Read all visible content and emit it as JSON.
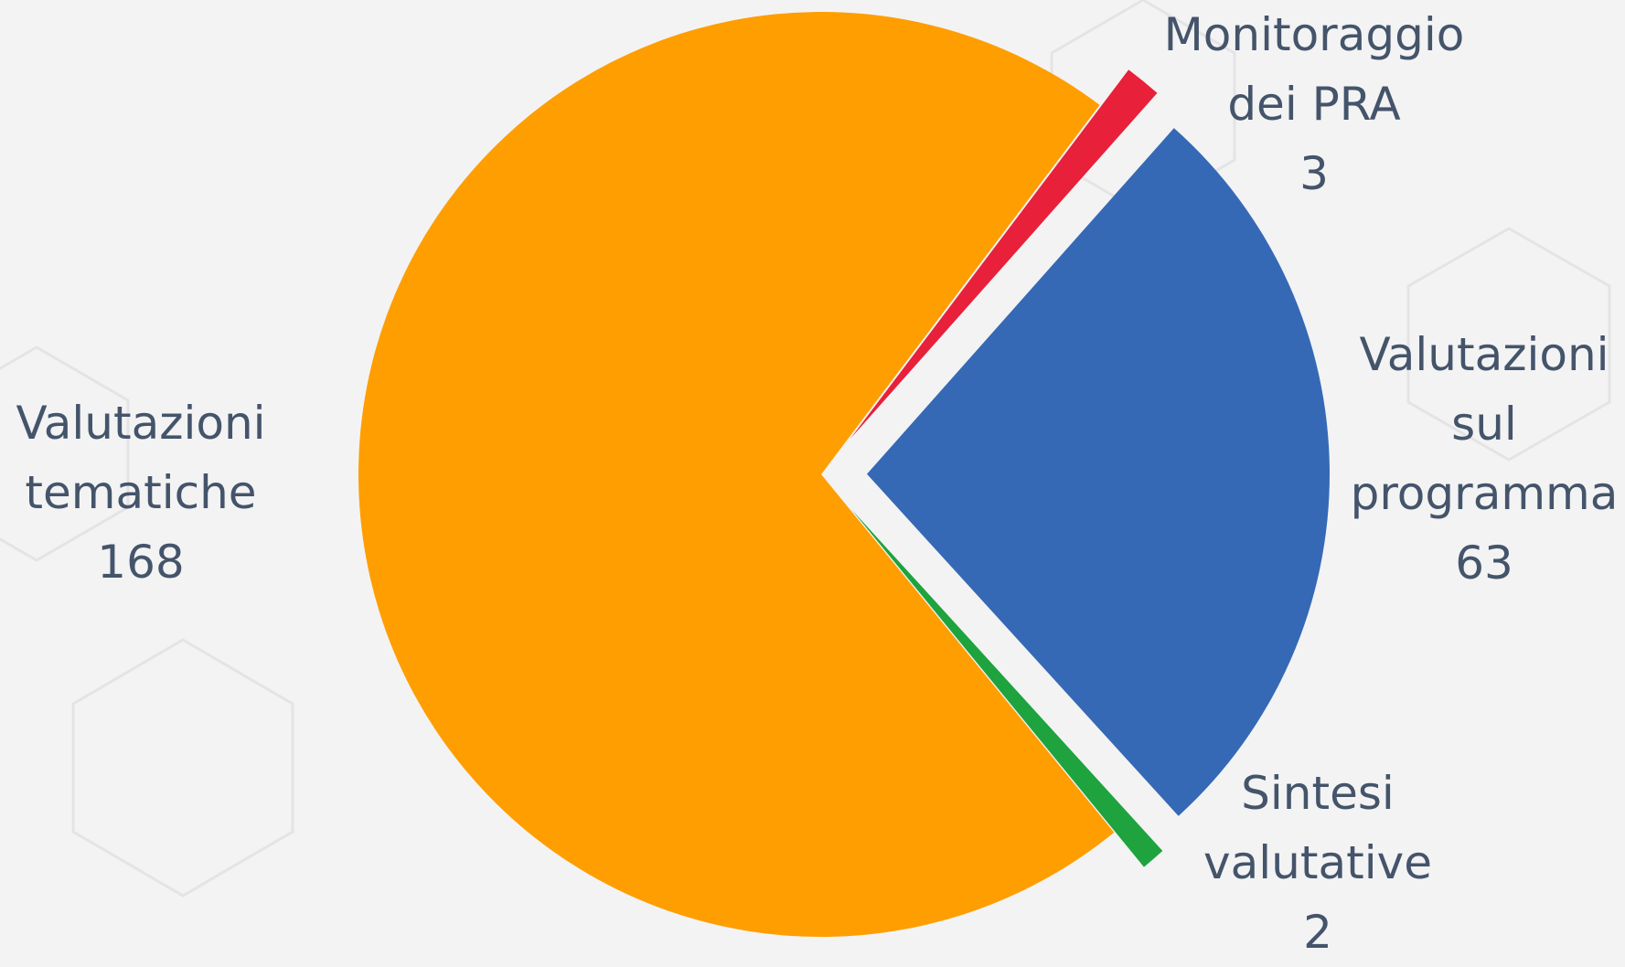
{
  "chart_data": {
    "type": "pie",
    "categories": [
      "Monitoraggio dei PRA",
      "Valutazioni sul programma",
      "Sintesi valutative",
      "Valutazioni tematiche"
    ],
    "values": [
      3,
      63,
      2,
      168
    ],
    "colors": [
      "#e8203a",
      "#3569b5",
      "#1ea33f",
      "#ff9e00"
    ]
  }
}
